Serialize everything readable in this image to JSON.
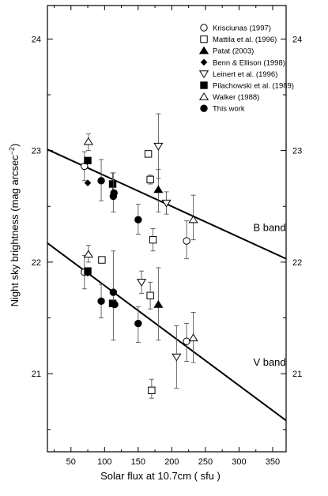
{
  "chart_data": {
    "type": "scatter",
    "xlabel": "Solar flux at 10.7cm  ( sfu )",
    "ylabel": "Night sky brightness (mag  arcsec",
    "ylabel_sup": "−2",
    "ylabel_close": ")",
    "xlim": [
      15,
      370
    ],
    "ylim": [
      20.3,
      24.3
    ],
    "x_ticks": [
      50,
      100,
      150,
      200,
      250,
      300,
      350
    ],
    "y_ticks": [
      21,
      22,
      23,
      24
    ],
    "x_tick_labels": [
      "50",
      "100",
      "150",
      "200",
      "250",
      "300",
      "350"
    ],
    "y_tick_labels": [
      "21",
      "22",
      "23",
      "24"
    ],
    "annotations": [
      {
        "text": "B band",
        "x": 300,
        "y": 22.28
      },
      {
        "text": "V band",
        "x": 300,
        "y": 21.07
      }
    ],
    "fits": [
      {
        "band": "B",
        "x": [
          15,
          370
        ],
        "y": [
          23.01,
          22.03
        ]
      },
      {
        "band": "V",
        "x": [
          15,
          370
        ],
        "y": [
          22.17,
          20.58
        ]
      }
    ],
    "legend_placement": "top-right",
    "series": [
      {
        "name": "Krisciunas (1997)",
        "marker": "circle-open",
        "points": [
          {
            "x": 70,
            "y": 22.86,
            "lo": 22.73,
            "hi": 22.99
          },
          {
            "x": 70,
            "y": 21.91,
            "lo": 21.76,
            "hi": 22.06
          },
          {
            "x": 222,
            "y": 22.19,
            "lo": 22.03,
            "hi": 22.37
          },
          {
            "x": 222,
            "y": 21.29,
            "lo": 21.11,
            "hi": 21.45
          }
        ]
      },
      {
        "name": "Mattila et al. (1996)",
        "marker": "square-open",
        "points": [
          {
            "x": 165,
            "y": 22.97
          },
          {
            "x": 168,
            "y": 22.74,
            "lo": 22.7,
            "hi": 22.78
          },
          {
            "x": 96,
            "y": 22.02
          },
          {
            "x": 172,
            "y": 22.2,
            "lo": 22.1,
            "hi": 22.3
          },
          {
            "x": 168,
            "y": 21.7,
            "lo": 21.58,
            "hi": 21.82
          },
          {
            "x": 170,
            "y": 20.85,
            "lo": 20.78,
            "hi": 20.95
          }
        ]
      },
      {
        "name": "Patat (2003)",
        "marker": "triangle-filled",
        "points": [
          {
            "x": 180,
            "y": 22.65,
            "lo": 22.45,
            "hi": 22.83
          },
          {
            "x": 180,
            "y": 21.62,
            "lo": 21.3,
            "hi": 21.95
          }
        ]
      },
      {
        "name": "Benn & Ellison (1998)",
        "marker": "diamond-filled",
        "points": [
          {
            "x": 75,
            "y": 22.71
          },
          {
            "x": 75,
            "y": 21.9
          }
        ]
      },
      {
        "name": "Leinert et al. (1996)",
        "marker": "triangle-down-open",
        "points": [
          {
            "x": 180,
            "y": 23.04,
            "lo": 22.75,
            "hi": 23.33
          },
          {
            "x": 192,
            "y": 22.53,
            "lo": 22.43,
            "hi": 22.63
          },
          {
            "x": 155,
            "y": 21.82,
            "lo": 21.72,
            "hi": 21.92
          },
          {
            "x": 207,
            "y": 21.15,
            "lo": 20.87,
            "hi": 21.43
          }
        ]
      },
      {
        "name": "Pilachowski et al. (1989)",
        "marker": "square-filled",
        "points": [
          {
            "x": 75,
            "y": 22.91
          },
          {
            "x": 112,
            "y": 22.7,
            "lo": 22.6,
            "hi": 22.8
          },
          {
            "x": 75,
            "y": 21.92
          },
          {
            "x": 112,
            "y": 21.63
          }
        ]
      },
      {
        "name": "Walker (1988)",
        "marker": "triangle-open",
        "points": [
          {
            "x": 76,
            "y": 23.08,
            "lo": 23.0,
            "hi": 23.15
          },
          {
            "x": 76,
            "y": 22.07,
            "lo": 22.0,
            "hi": 22.15
          },
          {
            "x": 232,
            "y": 22.38,
            "lo": 22.2,
            "hi": 22.6
          },
          {
            "x": 232,
            "y": 21.32,
            "lo": 21.1,
            "hi": 21.55
          }
        ]
      },
      {
        "name": "This work",
        "marker": "circle-filled",
        "points": [
          {
            "x": 95,
            "y": 22.73,
            "lo": 22.55,
            "hi": 22.92
          },
          {
            "x": 113,
            "y": 22.59,
            "lo": 22.45,
            "hi": 22.8
          },
          {
            "x": 114,
            "y": 22.62
          },
          {
            "x": 150,
            "y": 22.38,
            "lo": 22.25,
            "hi": 22.52
          },
          {
            "x": 95,
            "y": 21.65,
            "lo": 21.5,
            "hi": 21.8
          },
          {
            "x": 113,
            "y": 21.73,
            "lo": 21.3,
            "hi": 22.1
          },
          {
            "x": 115,
            "y": 21.62
          },
          {
            "x": 150,
            "y": 21.45,
            "lo": 21.28,
            "hi": 21.6
          }
        ]
      }
    ]
  }
}
